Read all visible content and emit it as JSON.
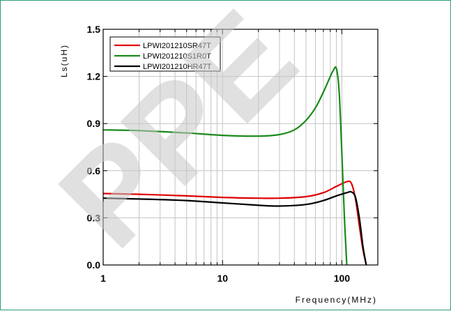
{
  "watermark": "PPE",
  "chart_data": {
    "type": "line",
    "xlabel": "Frequency(MHz)",
    "ylabel": "Ls(uH)",
    "xscale": "log",
    "xlim": [
      1,
      200
    ],
    "ylim": [
      0.0,
      1.5
    ],
    "xticks": [
      1,
      10,
      100
    ],
    "xtick_labels": [
      "1",
      "10",
      "100"
    ],
    "yticks": [
      0.0,
      0.3,
      0.6,
      0.9,
      1.2,
      1.5
    ],
    "ytick_labels": [
      "0.0",
      "0.3",
      "0.6",
      "0.9",
      "1.2",
      "1.5"
    ],
    "grid": true,
    "legend_position": "top-left",
    "series": [
      {
        "name": "LPWI201210SR47T",
        "color": "#e00000",
        "x": [
          1,
          2,
          5,
          10,
          20,
          30,
          50,
          70,
          90,
          110,
          120,
          130,
          140,
          150,
          160
        ],
        "y": [
          0.455,
          0.45,
          0.44,
          0.43,
          0.425,
          0.425,
          0.435,
          0.46,
          0.5,
          0.53,
          0.52,
          0.42,
          0.25,
          0.1,
          0.0
        ]
      },
      {
        "name": "LPWI201210S1R0T",
        "color": "#1a8a1a",
        "x": [
          1,
          2,
          5,
          10,
          20,
          30,
          40,
          50,
          60,
          70,
          80,
          85,
          90,
          95,
          100,
          105,
          110
        ],
        "y": [
          0.86,
          0.855,
          0.84,
          0.825,
          0.82,
          0.83,
          0.86,
          0.92,
          1.0,
          1.1,
          1.2,
          1.24,
          1.25,
          1.1,
          0.7,
          0.3,
          0.0
        ]
      },
      {
        "name": "LPWI201210HR47T",
        "color": "#000000",
        "x": [
          1,
          2,
          5,
          10,
          20,
          30,
          50,
          70,
          90,
          110,
          120,
          130,
          140,
          150,
          160
        ],
        "y": [
          0.425,
          0.42,
          0.41,
          0.395,
          0.38,
          0.375,
          0.385,
          0.41,
          0.44,
          0.46,
          0.465,
          0.43,
          0.3,
          0.12,
          0.0
        ]
      }
    ]
  }
}
